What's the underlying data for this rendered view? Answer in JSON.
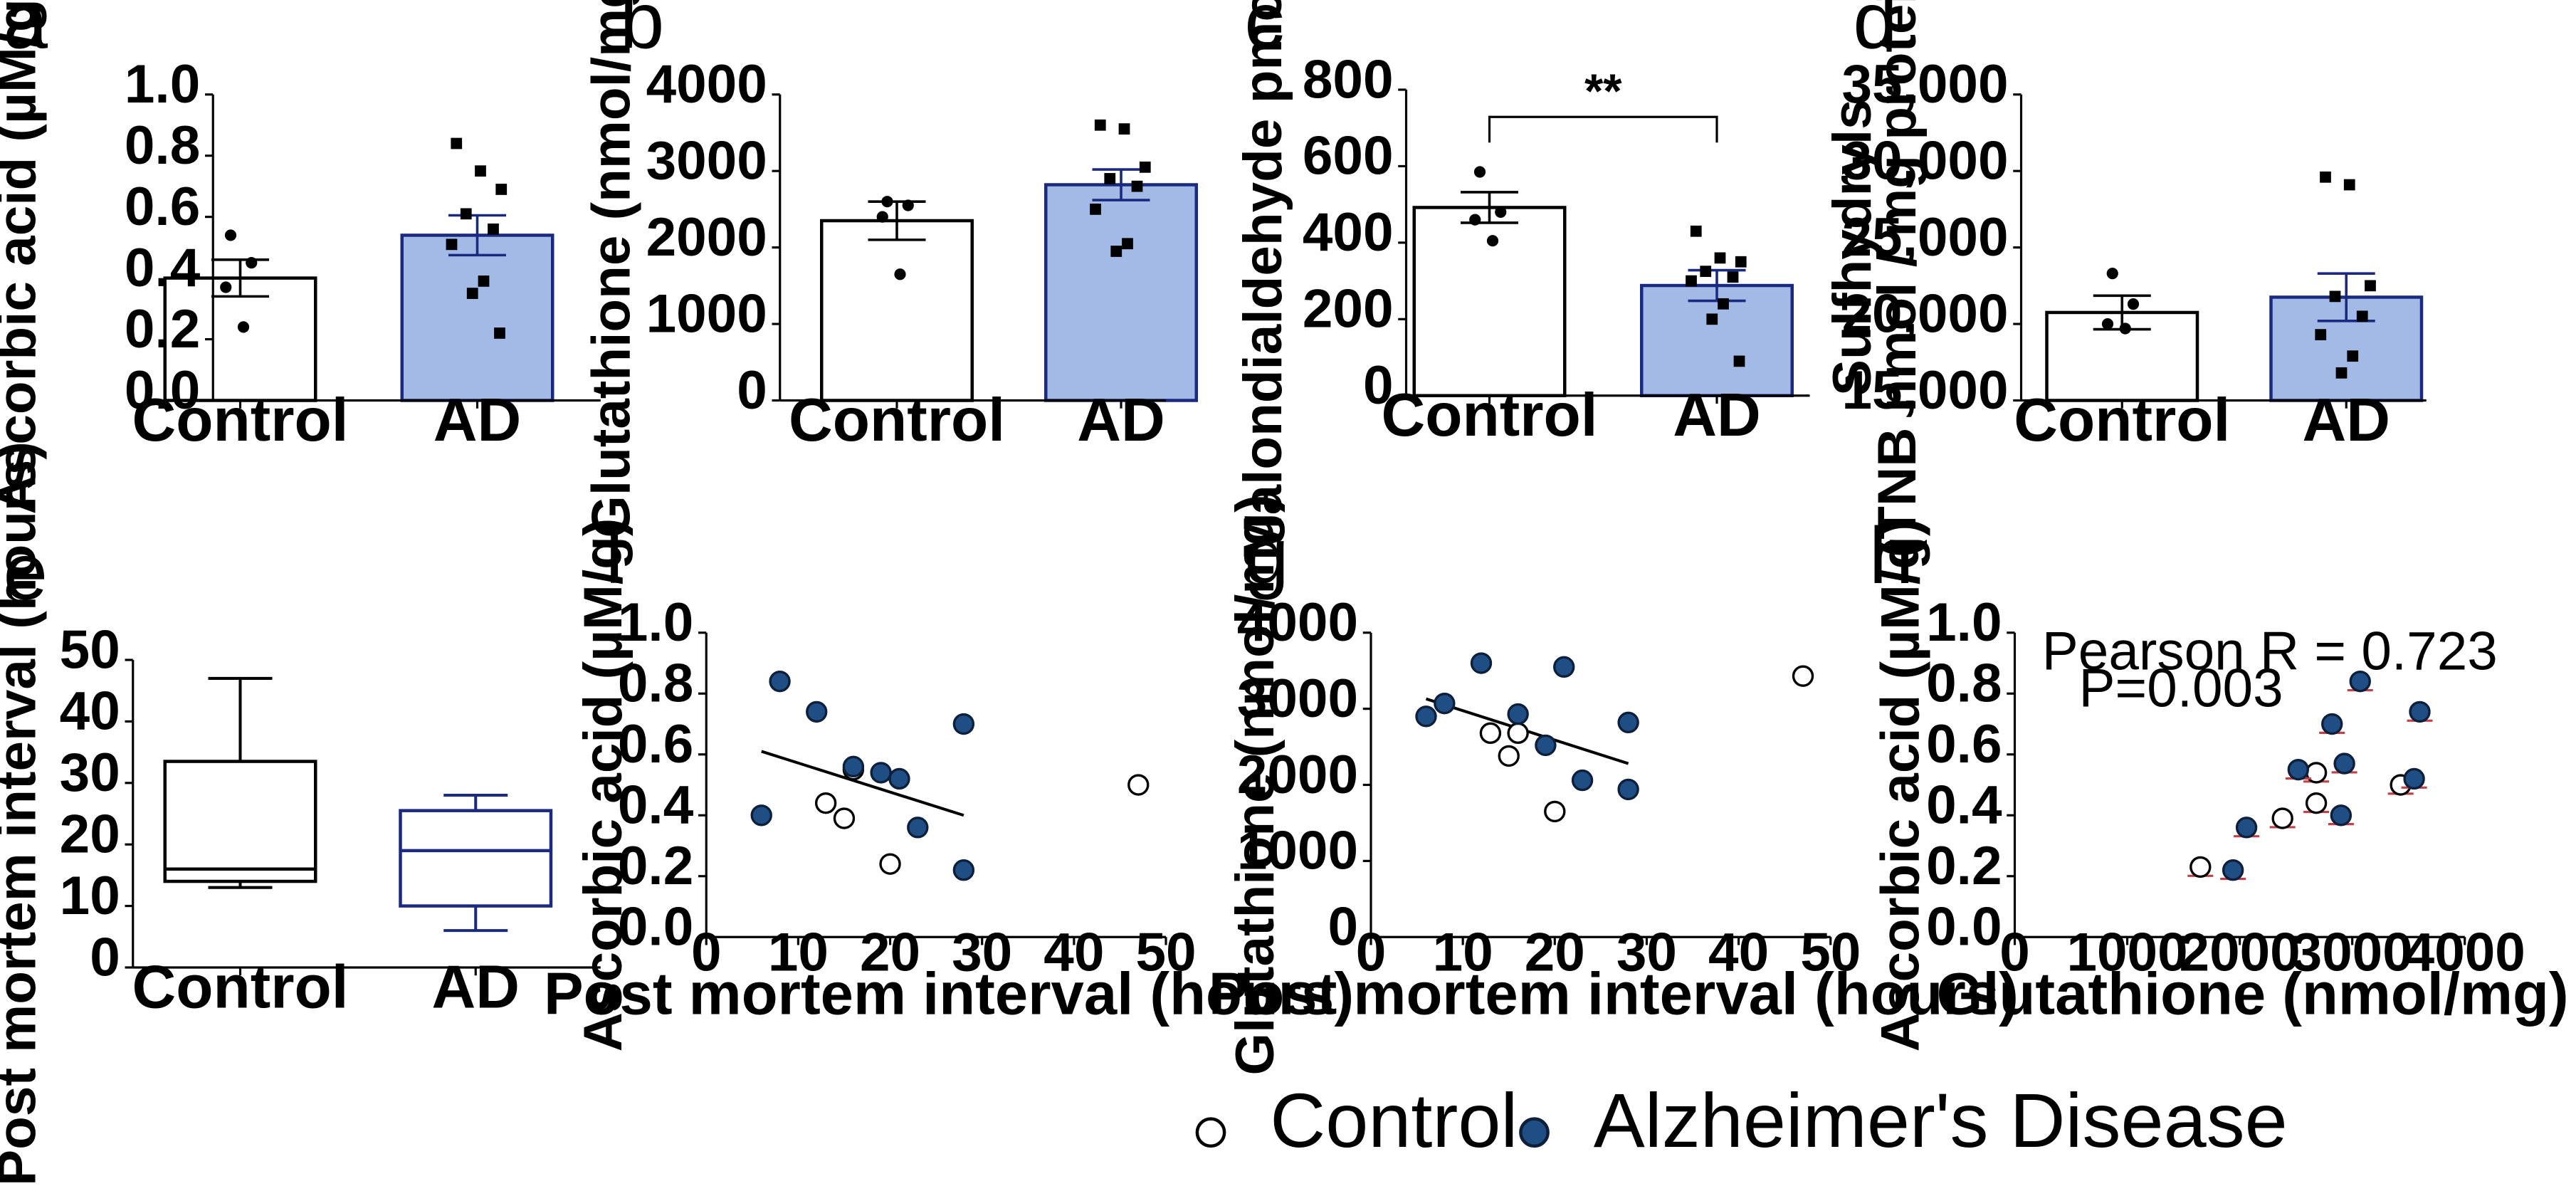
{
  "colors": {
    "ad_fill": "#a3b9e6",
    "ad_line": "#1b2a80",
    "ad_point": "#1f4e85",
    "control_fill": "#ffffff",
    "line": "#000000",
    "h_edge": "#c1404a"
  },
  "chart_data": [
    {
      "panel": "a",
      "type": "bar",
      "ylabel": "Ascorbic acid (µM/g)",
      "xlabel": "",
      "ylim": [
        0,
        1.0
      ],
      "yticks": [
        "0.0",
        "0.2",
        "0.4",
        "0.6",
        "0.8",
        "1.0"
      ],
      "categories": [
        "Control",
        "AD"
      ],
      "means": [
        0.4,
        0.54
      ],
      "sem": [
        0.06,
        0.065
      ],
      "points": [
        [
          0.54,
          0.45,
          0.37,
          0.24
        ],
        [
          0.84,
          0.75,
          0.69,
          0.61,
          0.56,
          0.51,
          0.39,
          0.35,
          0.22
        ]
      ]
    },
    {
      "panel": "b",
      "type": "bar",
      "ylabel": "Glutathione (nmol/mg)",
      "xlabel": "",
      "ylim": [
        0,
        4000
      ],
      "yticks": [
        "0",
        "1000",
        "2000",
        "3000",
        "4000"
      ],
      "categories": [
        "Control",
        "AD"
      ],
      "means": [
        2350,
        2820
      ],
      "sem": [
        250,
        200
      ],
      "points": [
        [
          2600,
          2550,
          2400,
          1650
        ],
        [
          3600,
          3550,
          3050,
          2900,
          2800,
          2500,
          2050,
          1950
        ]
      ]
    },
    {
      "panel": "c",
      "type": "bar",
      "ylabel": "Malondialdehyde pmol/g",
      "xlabel": "",
      "ylim": [
        0,
        800
      ],
      "yticks": [
        "0",
        "200",
        "400",
        "600",
        "800"
      ],
      "categories": [
        "Control",
        "AD"
      ],
      "means": [
        492,
        288
      ],
      "sem": [
        40,
        40
      ],
      "points": [
        [
          585,
          480,
          460,
          405
        ],
        [
          430,
          360,
          350,
          325,
          310,
          300,
          240,
          200,
          90
        ]
      ],
      "significance": "**"
    },
    {
      "panel": "d",
      "type": "bar",
      "ylabel": "Sulfhydryls",
      "ylabel2": "(TNB nmol / mg protein)",
      "xlabel": "",
      "ylim": [
        15000,
        35000
      ],
      "yticks": [
        "15,000",
        "20,000",
        "25,000",
        "30,000",
        "35,000"
      ],
      "categories": [
        "Control",
        "AD"
      ],
      "means": [
        20750,
        21750
      ],
      "sem": [
        1100,
        1550
      ],
      "points": [
        [
          23300,
          21300,
          20000,
          19700
        ],
        [
          29600,
          29100,
          22500,
          21800,
          20500,
          19300,
          17900,
          16800
        ]
      ]
    },
    {
      "panel": "e",
      "type": "boxplot",
      "ylabel": "Post mortem interval (hours)",
      "xlabel": "",
      "ylim": [
        0,
        50
      ],
      "yticks": [
        "0",
        "10",
        "20",
        "30",
        "40",
        "50"
      ],
      "categories": [
        "Control",
        "AD"
      ],
      "boxes": [
        {
          "min": 13,
          "q1": 14,
          "median": 16,
          "q3": 33.5,
          "max": 47
        },
        {
          "min": 6,
          "q1": 10,
          "median": 19,
          "q3": 25.5,
          "max": 28
        }
      ]
    },
    {
      "panel": "f",
      "type": "scatter",
      "xlabel": "Post mortem interval (hours)",
      "ylabel": "Ascorbic acid (µM/g)",
      "xlim": [
        0,
        50
      ],
      "ylim": [
        0,
        1.0
      ],
      "xticks": [
        "0",
        "10",
        "20",
        "30",
        "40",
        "50"
      ],
      "yticks": [
        "0.0",
        "0.2",
        "0.4",
        "0.6",
        "0.8",
        "1.0"
      ],
      "series": [
        {
          "name": "Control",
          "x": [
            13,
            15,
            16,
            20,
            47
          ],
          "y": [
            0.44,
            0.39,
            0.55,
            0.24,
            0.5
          ]
        },
        {
          "name": "AD",
          "x": [
            6,
            8,
            12,
            16,
            19,
            21,
            23,
            28,
            28
          ],
          "y": [
            0.4,
            0.84,
            0.74,
            0.56,
            0.54,
            0.52,
            0.36,
            0.7,
            0.22
          ]
        }
      ],
      "fit": {
        "x": [
          6,
          28
        ],
        "y": [
          0.61,
          0.4
        ]
      }
    },
    {
      "panel": "g",
      "type": "scatter",
      "xlabel": "Post mortem interval (hours)",
      "ylabel": "Glutathione (nmol/mg)",
      "xlim": [
        0,
        50
      ],
      "ylim": [
        0,
        4000
      ],
      "xticks": [
        "0",
        "10",
        "20",
        "30",
        "40",
        "50"
      ],
      "yticks": [
        "0",
        "1000",
        "2000",
        "3000",
        "4000"
      ],
      "series": [
        {
          "name": "Control",
          "x": [
            13,
            15,
            16,
            20,
            47
          ],
          "y": [
            2680,
            2380,
            2680,
            1650,
            3430
          ]
        },
        {
          "name": "AD",
          "x": [
            6,
            8,
            12,
            16,
            19,
            21,
            23,
            28,
            28
          ],
          "y": [
            2900,
            3070,
            3600,
            2930,
            2520,
            3550,
            2060,
            2820,
            1940
          ]
        }
      ],
      "fit": {
        "x": [
          6,
          28
        ],
        "y": [
          3130,
          2280
        ]
      }
    },
    {
      "panel": "h",
      "type": "scatter",
      "xlabel": "Glutathione (nmol/mg)",
      "ylabel": "Ascorbic acid (µM/g)",
      "xlim": [
        0,
        4000
      ],
      "ylim": [
        0,
        1.0
      ],
      "xticks": [
        "0",
        "1000",
        "2000",
        "3000",
        "4000"
      ],
      "yticks": [
        "0.0",
        "0.2",
        "0.4",
        "0.6",
        "0.8",
        "1.0"
      ],
      "annotation": [
        "Pearson R = 0.723",
        "P=0.003"
      ],
      "series": [
        {
          "name": "Control",
          "x": [
            1650,
            2380,
            2680,
            2680,
            3430
          ],
          "y": [
            0.23,
            0.39,
            0.44,
            0.54,
            0.5
          ]
        },
        {
          "name": "AD",
          "x": [
            1940,
            2060,
            2520,
            2820,
            2900,
            2930,
            3070,
            3550,
            3600
          ],
          "y": [
            0.22,
            0.36,
            0.55,
            0.7,
            0.4,
            0.57,
            0.84,
            0.52,
            0.74
          ]
        }
      ]
    }
  ],
  "legend": {
    "items": [
      {
        "label": "Control",
        "marker": "open-circle"
      },
      {
        "label": "Alzheimer's Disease",
        "marker": "filled-circle"
      }
    ]
  }
}
